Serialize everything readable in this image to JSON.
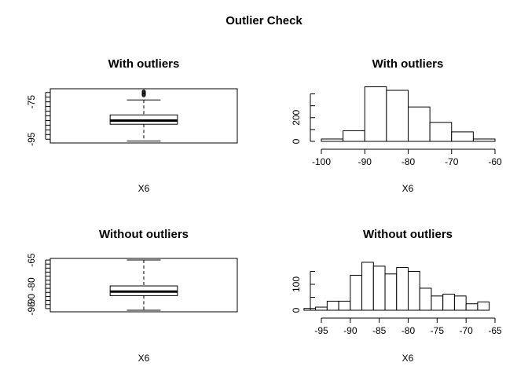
{
  "page_title": "Outlier Check",
  "chart_data": [
    {
      "type": "box",
      "title": "With outliers",
      "xlabel": "X6",
      "ylabel": "",
      "orientation": "horizontal",
      "xlim": [
        -97,
        -68
      ],
      "ticks": [
        -95,
        -85,
        -75
      ],
      "tick_labels": [
        "-95",
        "",
        "-75"
      ],
      "minor_ticks": [
        -95,
        -92.5,
        -90,
        -87.5,
        -85,
        -82.5,
        -80,
        -77.5,
        -75,
        -72.5,
        -70
      ],
      "stats": {
        "min": -96,
        "q1": -87,
        "median": -85,
        "q3": -82,
        "max": -74
      },
      "outliers": [
        -71.5,
        -71,
        -70.5,
        -70,
        -69.5
      ]
    },
    {
      "type": "histogram",
      "title": "With outliers",
      "xlabel": "X6",
      "ylabel": "",
      "x_ticks": [
        -100,
        -90,
        -80,
        -70,
        -60
      ],
      "y_ticks": [
        0,
        200
      ],
      "y_minor_ticks": [
        0,
        100,
        200,
        300,
        400
      ],
      "ylim": [
        0,
        450
      ],
      "bins": [
        {
          "from": -100,
          "to": -95,
          "count": 20
        },
        {
          "from": -95,
          "to": -90,
          "count": 90
        },
        {
          "from": -90,
          "to": -85,
          "count": 460
        },
        {
          "from": -85,
          "to": -80,
          "count": 430
        },
        {
          "from": -80,
          "to": -75,
          "count": 290
        },
        {
          "from": -75,
          "to": -70,
          "count": 160
        },
        {
          "from": -70,
          "to": -65,
          "count": 80
        },
        {
          "from": -65,
          "to": -60,
          "count": 20
        }
      ]
    },
    {
      "type": "box",
      "title": "Without outliers",
      "xlabel": "X6",
      "ylabel": "",
      "orientation": "horizontal",
      "xlim": [
        -97,
        -64
      ],
      "ticks": [
        -95,
        -90,
        -80,
        -65
      ],
      "tick_labels": [
        "-95",
        "-90",
        "-80",
        "-65"
      ],
      "minor_ticks": [
        -95,
        -92.5,
        -90,
        -87.5,
        -85,
        -82.5,
        -80,
        -77.5,
        -75,
        -72.5,
        -70,
        -67.5,
        -65
      ],
      "stats": {
        "min": -96,
        "q1": -87,
        "median": -84.5,
        "q3": -81,
        "max": -65
      },
      "outliers": []
    },
    {
      "type": "histogram",
      "title": "Without outliers",
      "xlabel": "X6",
      "ylabel": "",
      "x_ticks": [
        -95,
        -90,
        -85,
        -80,
        -75,
        -70,
        -65
      ],
      "y_ticks": [
        0,
        100
      ],
      "y_minor_ticks": [
        0,
        50,
        100,
        150
      ],
      "ylim": [
        0,
        200
      ],
      "bins": [
        {
          "from": -98,
          "to": -96,
          "count": 7
        },
        {
          "from": -96,
          "to": -94,
          "count": 12
        },
        {
          "from": -94,
          "to": -92,
          "count": 35
        },
        {
          "from": -92,
          "to": -90,
          "count": 35
        },
        {
          "from": -90,
          "to": -88,
          "count": 135
        },
        {
          "from": -88,
          "to": -86,
          "count": 185
        },
        {
          "from": -86,
          "to": -84,
          "count": 170
        },
        {
          "from": -84,
          "to": -82,
          "count": 140
        },
        {
          "from": -82,
          "to": -80,
          "count": 165
        },
        {
          "from": -80,
          "to": -78,
          "count": 150
        },
        {
          "from": -78,
          "to": -76,
          "count": 85
        },
        {
          "from": -76,
          "to": -74,
          "count": 55
        },
        {
          "from": -74,
          "to": -72,
          "count": 62
        },
        {
          "from": -72,
          "to": -70,
          "count": 55
        },
        {
          "from": -70,
          "to": -68,
          "count": 25
        },
        {
          "from": -68,
          "to": -66,
          "count": 32
        }
      ]
    }
  ]
}
